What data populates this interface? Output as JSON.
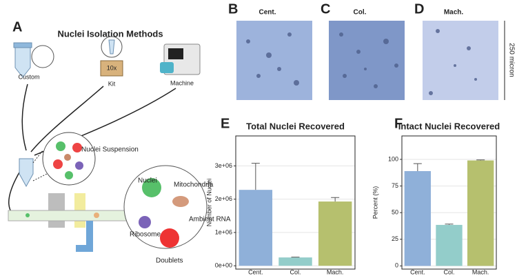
{
  "panel_a": {
    "letter": "A",
    "title": "Nuclei Isolation Methods",
    "methods": [
      "Custom",
      "Kit",
      "Machine"
    ],
    "kit_box": "10x",
    "suspension": "Nuclei Suspension",
    "components": [
      "Nuclei",
      "Mitochondria",
      "Ambient RNA",
      "Ribosome",
      "Doublets"
    ]
  },
  "micrographs": {
    "panels": [
      {
        "letter": "B",
        "label": "Cent."
      },
      {
        "letter": "C",
        "label": "Col."
      },
      {
        "letter": "D",
        "label": "Mach."
      }
    ],
    "scale": "250 micron"
  },
  "chart_data": [
    {
      "type": "bar",
      "panel": "E",
      "title": "Total Nuclei Recovered",
      "ylabel": "Number of Nuclei",
      "categories": [
        "Cent.",
        "Col.",
        "Mach."
      ],
      "values": [
        2280000,
        250000,
        1930000
      ],
      "errors": [
        800000,
        10000,
        120000
      ],
      "colors": [
        "#8fb0d9",
        "#93cdca",
        "#b6c06e"
      ],
      "ylim": [
        -100000,
        3900000
      ],
      "yticks": [
        {
          "value": 0,
          "label": "0e+00"
        },
        {
          "value": 1000000,
          "label": "1e+06"
        },
        {
          "value": 2000000,
          "label": "2e+06"
        },
        {
          "value": 3000000,
          "label": "3e+06"
        }
      ],
      "grid": true
    },
    {
      "type": "bar",
      "panel": "F",
      "title": "Intact Nuclei Recovered",
      "ylabel": "Percent (%)",
      "categories": [
        "Cent.",
        "Col.",
        "Mach."
      ],
      "values": [
        89,
        38.5,
        99
      ],
      "errors": [
        7,
        0.8,
        0.5
      ],
      "colors": [
        "#8fb0d9",
        "#93cdca",
        "#b6c06e"
      ],
      "ylim": [
        -3,
        122
      ],
      "yticks": [
        0,
        25,
        50,
        75,
        100
      ],
      "grid": true
    }
  ]
}
